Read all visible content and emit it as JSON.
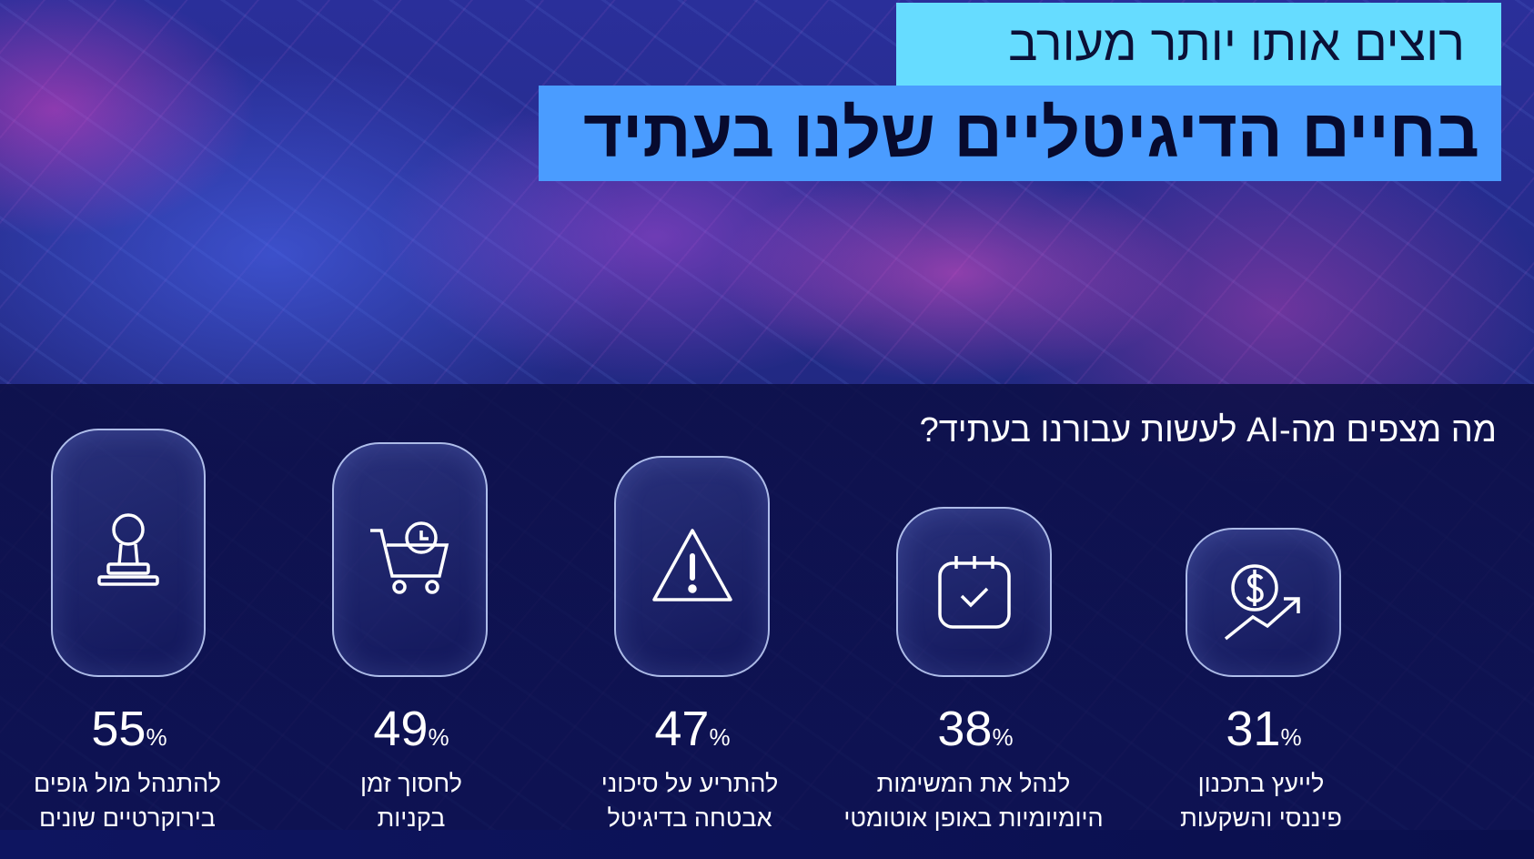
{
  "header": {
    "line1": "רוצים אותו יותר מעורב",
    "line2": "בחיים הדיגיטליים שלנו בעתיד"
  },
  "question": "מה מצפים מה-AI לעשות עבורנו בעתיד?",
  "percent_sign": "%",
  "items": [
    {
      "value": "55",
      "icon": "stamp-icon",
      "line1": "להתנהל מול גופים",
      "line2": "בירוקרטיים שונים"
    },
    {
      "value": "49",
      "icon": "cart-clock-icon",
      "line1": "לחסוך זמן",
      "line2": "בקניות"
    },
    {
      "value": "47",
      "icon": "warning-icon",
      "line1": "להתריע על סיכוני",
      "line2": "אבטחה בדיגיטל"
    },
    {
      "value": "38",
      "icon": "calendar-check-icon",
      "line1": "לנהל את המשימות",
      "line2": "היומיומיות באופן אוטומטי"
    },
    {
      "value": "31",
      "icon": "dollar-growth-icon",
      "line1": "לייעץ בתכנון",
      "line2": "פיננסי והשקעות"
    }
  ],
  "colors": {
    "title_bg_light": "#66dcff",
    "title_bg": "#4a9cff",
    "band": "#0c0f46"
  }
}
